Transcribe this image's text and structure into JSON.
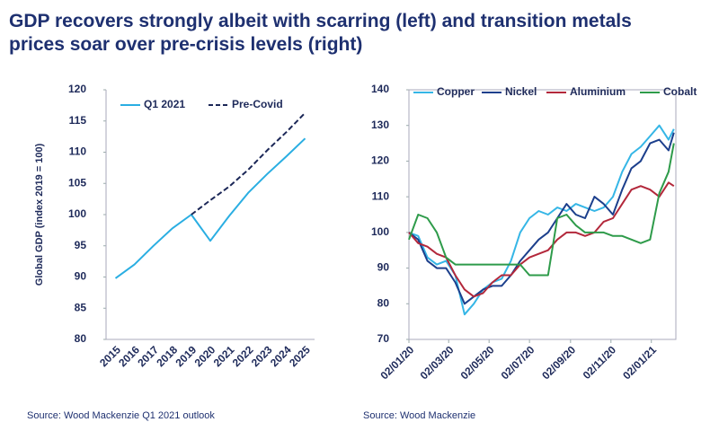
{
  "title": "GDP recovers strongly albeit with scarring (left) and transition metals prices soar over pre-crisis levels (right)",
  "chart_data": [
    {
      "type": "line",
      "ylabel": "Global GDP (index 2019 = 100)",
      "source": "Source: Wood Mackenzie Q1 2021 outlook",
      "categories": [
        "2015",
        "2016",
        "2017",
        "2018",
        "2019",
        "2020",
        "2021",
        "2022",
        "2023",
        "2024",
        "2025"
      ],
      "ylim": [
        80,
        120
      ],
      "yticks": [
        80,
        85,
        90,
        95,
        100,
        105,
        110,
        115,
        120
      ],
      "grid": false,
      "legend": "top",
      "series": [
        {
          "name": "Q1 2021",
          "color": "#2aaee2",
          "style": "solid",
          "values": [
            89.8,
            92,
            95,
            97.8,
            100,
            95.8,
            99.8,
            103.5,
            106.5,
            109.3,
            112.2
          ]
        },
        {
          "name": "Pre-Covid",
          "color": "#1b2757",
          "style": "dashed",
          "values": [
            null,
            null,
            null,
            null,
            100,
            102.3,
            104.5,
            107.2,
            110.3,
            113.2,
            116.3
          ]
        }
      ]
    },
    {
      "type": "line",
      "source": "Source: Wood Mackenzie",
      "x": [
        "2020-01-02",
        "2020-01-16",
        "2020-01-30",
        "2020-02-13",
        "2020-02-27",
        "2020-03-12",
        "2020-03-26",
        "2020-04-09",
        "2020-04-23",
        "2020-05-07",
        "2020-05-21",
        "2020-06-04",
        "2020-06-18",
        "2020-07-02",
        "2020-07-16",
        "2020-07-30",
        "2020-08-13",
        "2020-08-27",
        "2020-09-10",
        "2020-09-24",
        "2020-10-08",
        "2020-10-22",
        "2020-11-05",
        "2020-11-19",
        "2020-12-03",
        "2020-12-17",
        "2020-12-31",
        "2021-01-14",
        "2021-01-28",
        "2021-02-05"
      ],
      "xlim": [
        "2020-01-02",
        "2021-02-08"
      ],
      "xticks": [
        {
          "value": "2020-01-02",
          "label": "02/01/20"
        },
        {
          "value": "2020-03-02",
          "label": "02/03/20"
        },
        {
          "value": "2020-05-02",
          "label": "02/05/20"
        },
        {
          "value": "2020-07-02",
          "label": "02/07/20"
        },
        {
          "value": "2020-09-02",
          "label": "02/09/20"
        },
        {
          "value": "2020-11-02",
          "label": "02/11/20"
        },
        {
          "value": "2021-01-02",
          "label": "02/01/21"
        }
      ],
      "ylim": [
        70,
        140
      ],
      "yticks": [
        70,
        80,
        90,
        100,
        110,
        120,
        130,
        140
      ],
      "grid": false,
      "legend": "top",
      "series": [
        {
          "name": "Copper",
          "color": "#35b6e6",
          "style": "solid",
          "values": [
            100,
            99,
            93,
            91,
            92,
            88,
            77,
            80,
            84,
            86,
            87,
            92,
            100,
            104,
            106,
            105,
            107,
            106,
            108,
            107,
            106,
            107,
            110,
            117,
            122,
            124,
            127,
            130,
            126,
            129
          ]
        },
        {
          "name": "Nickel",
          "color": "#1c3f8c",
          "style": "solid",
          "values": [
            100,
            98,
            92,
            90,
            90,
            86,
            80,
            82,
            84,
            85,
            85,
            88,
            92,
            95,
            98,
            100,
            104,
            108,
            105,
            104,
            110,
            108,
            105,
            112,
            118,
            120,
            125,
            126,
            123,
            128
          ]
        },
        {
          "name": "Aluminium",
          "color": "#b3283b",
          "style": "solid",
          "values": [
            100,
            97,
            96,
            94,
            93,
            88,
            84,
            82,
            83,
            86,
            88,
            88,
            91,
            93,
            94,
            95,
            98,
            100,
            100,
            99,
            100,
            103,
            104,
            108,
            112,
            113,
            112,
            110,
            114,
            113
          ]
        },
        {
          "name": "Cobalt",
          "color": "#2e9b4a",
          "style": "solid",
          "values": [
            98,
            105,
            104,
            100,
            93,
            91,
            91,
            91,
            91,
            91,
            91,
            91,
            91,
            88,
            88,
            88,
            104,
            105,
            102,
            100,
            100,
            100,
            99,
            99,
            98,
            97,
            98,
            111,
            117,
            125
          ]
        }
      ]
    }
  ]
}
